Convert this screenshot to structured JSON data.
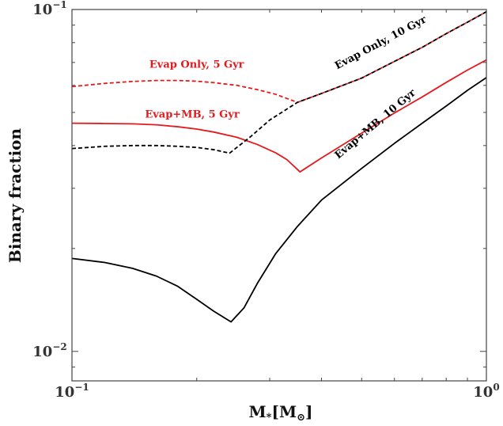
{
  "chart_data": {
    "type": "line",
    "xlabel": "M",
    "xlabel_sub": "*",
    "xlabel_unit_open": "[M",
    "xlabel_unit_sub": "⊙",
    "xlabel_unit_close": "]",
    "ylabel": "Binary fraction",
    "x_scale": "log",
    "y_scale": "log",
    "xlim": [
      0.1,
      1.0
    ],
    "ylim": [
      0.0082,
      0.1
    ],
    "x_ticks": [
      {
        "value": 0.1,
        "base": "10",
        "exp": "−1"
      },
      {
        "value": 1.0,
        "base": "10",
        "exp": "0"
      }
    ],
    "y_ticks": [
      {
        "value": 0.01,
        "base": "10",
        "exp": "−2"
      },
      {
        "value": 0.1,
        "base": "10",
        "exp": "−1"
      }
    ],
    "grid": false,
    "legend": "none",
    "series": [
      {
        "color": "#e41a1c",
        "dash": "dashed",
        "x": [
          0.1,
          0.12,
          0.14,
          0.16,
          0.18,
          0.2,
          0.22,
          0.25,
          0.28,
          0.31,
          0.35,
          0.4,
          0.5,
          0.6,
          0.7,
          0.8,
          0.9,
          1.0
        ],
        "y": [
          0.0595,
          0.0608,
          0.0616,
          0.062,
          0.062,
          0.0617,
          0.0611,
          0.06,
          0.0583,
          0.0565,
          0.0535,
          0.0568,
          0.063,
          0.0705,
          0.0775,
          0.085,
          0.0918,
          0.0985
        ]
      },
      {
        "color": "#e41a1c",
        "dash": "solid",
        "x": [
          0.1,
          0.12,
          0.14,
          0.16,
          0.18,
          0.2,
          0.22,
          0.25,
          0.28,
          0.31,
          0.33,
          0.355,
          0.4,
          0.5,
          0.6,
          0.7,
          0.8,
          0.9,
          1.0
        ],
        "y": [
          0.0465,
          0.0464,
          0.0463,
          0.046,
          0.0454,
          0.0447,
          0.0438,
          0.0423,
          0.0403,
          0.0381,
          0.0364,
          0.0335,
          0.0368,
          0.0435,
          0.0498,
          0.0555,
          0.0612,
          0.0665,
          0.0712
        ]
      },
      {
        "color": "#000000",
        "dash": "dashed",
        "x": [
          0.1,
          0.12,
          0.14,
          0.16,
          0.18,
          0.2,
          0.22,
          0.24,
          0.27,
          0.3,
          0.35,
          0.4,
          0.5,
          0.6,
          0.7,
          0.8,
          0.9,
          1.0
        ],
        "y": [
          0.0392,
          0.0398,
          0.04,
          0.04,
          0.0398,
          0.0395,
          0.0389,
          0.038,
          0.0425,
          0.0475,
          0.0535,
          0.0568,
          0.063,
          0.0705,
          0.0775,
          0.085,
          0.0918,
          0.0985
        ]
      },
      {
        "color": "#000000",
        "dash": "solid",
        "x": [
          0.1,
          0.12,
          0.14,
          0.16,
          0.18,
          0.2,
          0.22,
          0.242,
          0.26,
          0.28,
          0.31,
          0.35,
          0.4,
          0.5,
          0.6,
          0.7,
          0.8,
          0.9,
          1.0
        ],
        "y": [
          0.0187,
          0.0182,
          0.0175,
          0.0166,
          0.0155,
          0.0142,
          0.0131,
          0.0122,
          0.0134,
          0.0158,
          0.0193,
          0.0232,
          0.0277,
          0.0343,
          0.0406,
          0.0465,
          0.0522,
          0.058,
          0.0632
        ]
      }
    ],
    "annotations": [
      {
        "text": "Evap Only, 5 Gyr",
        "color": "#e41a1c",
        "x": 0.2,
        "y": 0.0675,
        "rotation": 0
      },
      {
        "text": "Evap+MB, 5 Gyr",
        "color": "#e41a1c",
        "x": 0.195,
        "y": 0.0483,
        "rotation": 0
      },
      {
        "text": "Evap Only, 10 Gyr",
        "color": "#000000",
        "x": 0.56,
        "y": 0.0785,
        "rotation": -28
      },
      {
        "text": "Evap+MB, 10 Gyr",
        "color": "#000000",
        "x": 0.545,
        "y": 0.0455,
        "rotation": -40
      }
    ]
  }
}
